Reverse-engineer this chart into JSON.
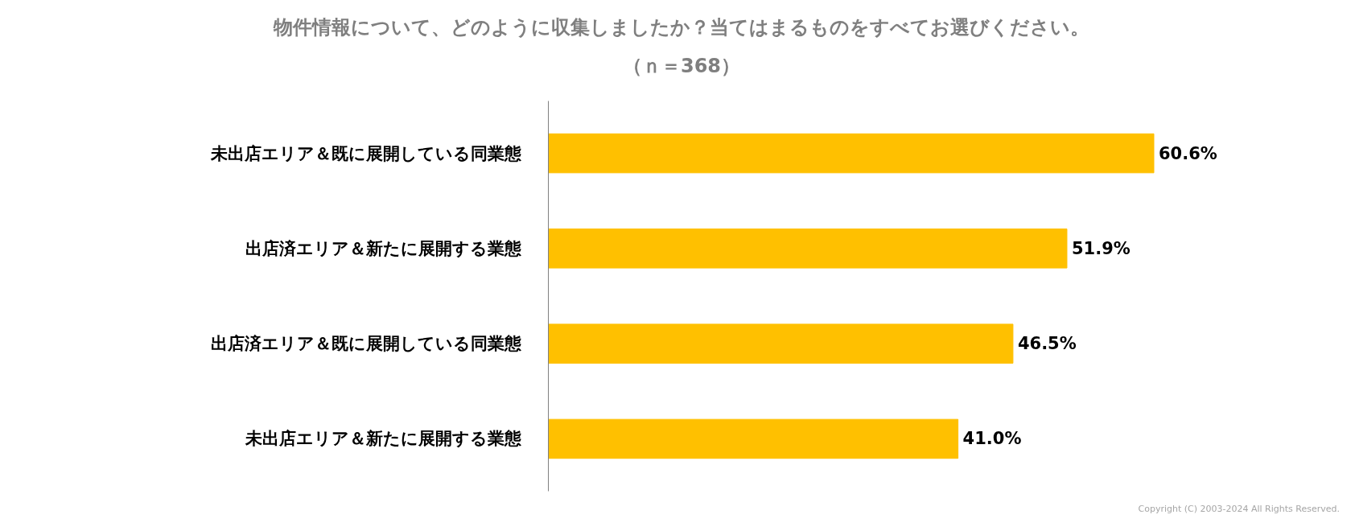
{
  "chart_data": {
    "type": "bar",
    "orientation": "horizontal",
    "title": "物件情報について、どのように収集しましたか？当てはまるものをすべてお選びください。",
    "subtitle": "（ｎ＝368）",
    "categories": [
      "未出店エリア＆既に展開している同業態",
      "出店済エリア＆新たに展開する業態",
      "出店済エリア＆既に展開している同業態",
      "未出店エリア＆新たに展開する業態"
    ],
    "values": [
      60.6,
      51.9,
      46.5,
      41.0
    ],
    "value_labels": [
      "60.6%",
      "51.9%",
      "46.5%",
      "41.0%"
    ],
    "color": "#ffc000",
    "grid": false,
    "tick_labels": "y",
    "annotations": [
      "Copyright (C) 2003-2024 All Rights Reserved."
    ]
  }
}
